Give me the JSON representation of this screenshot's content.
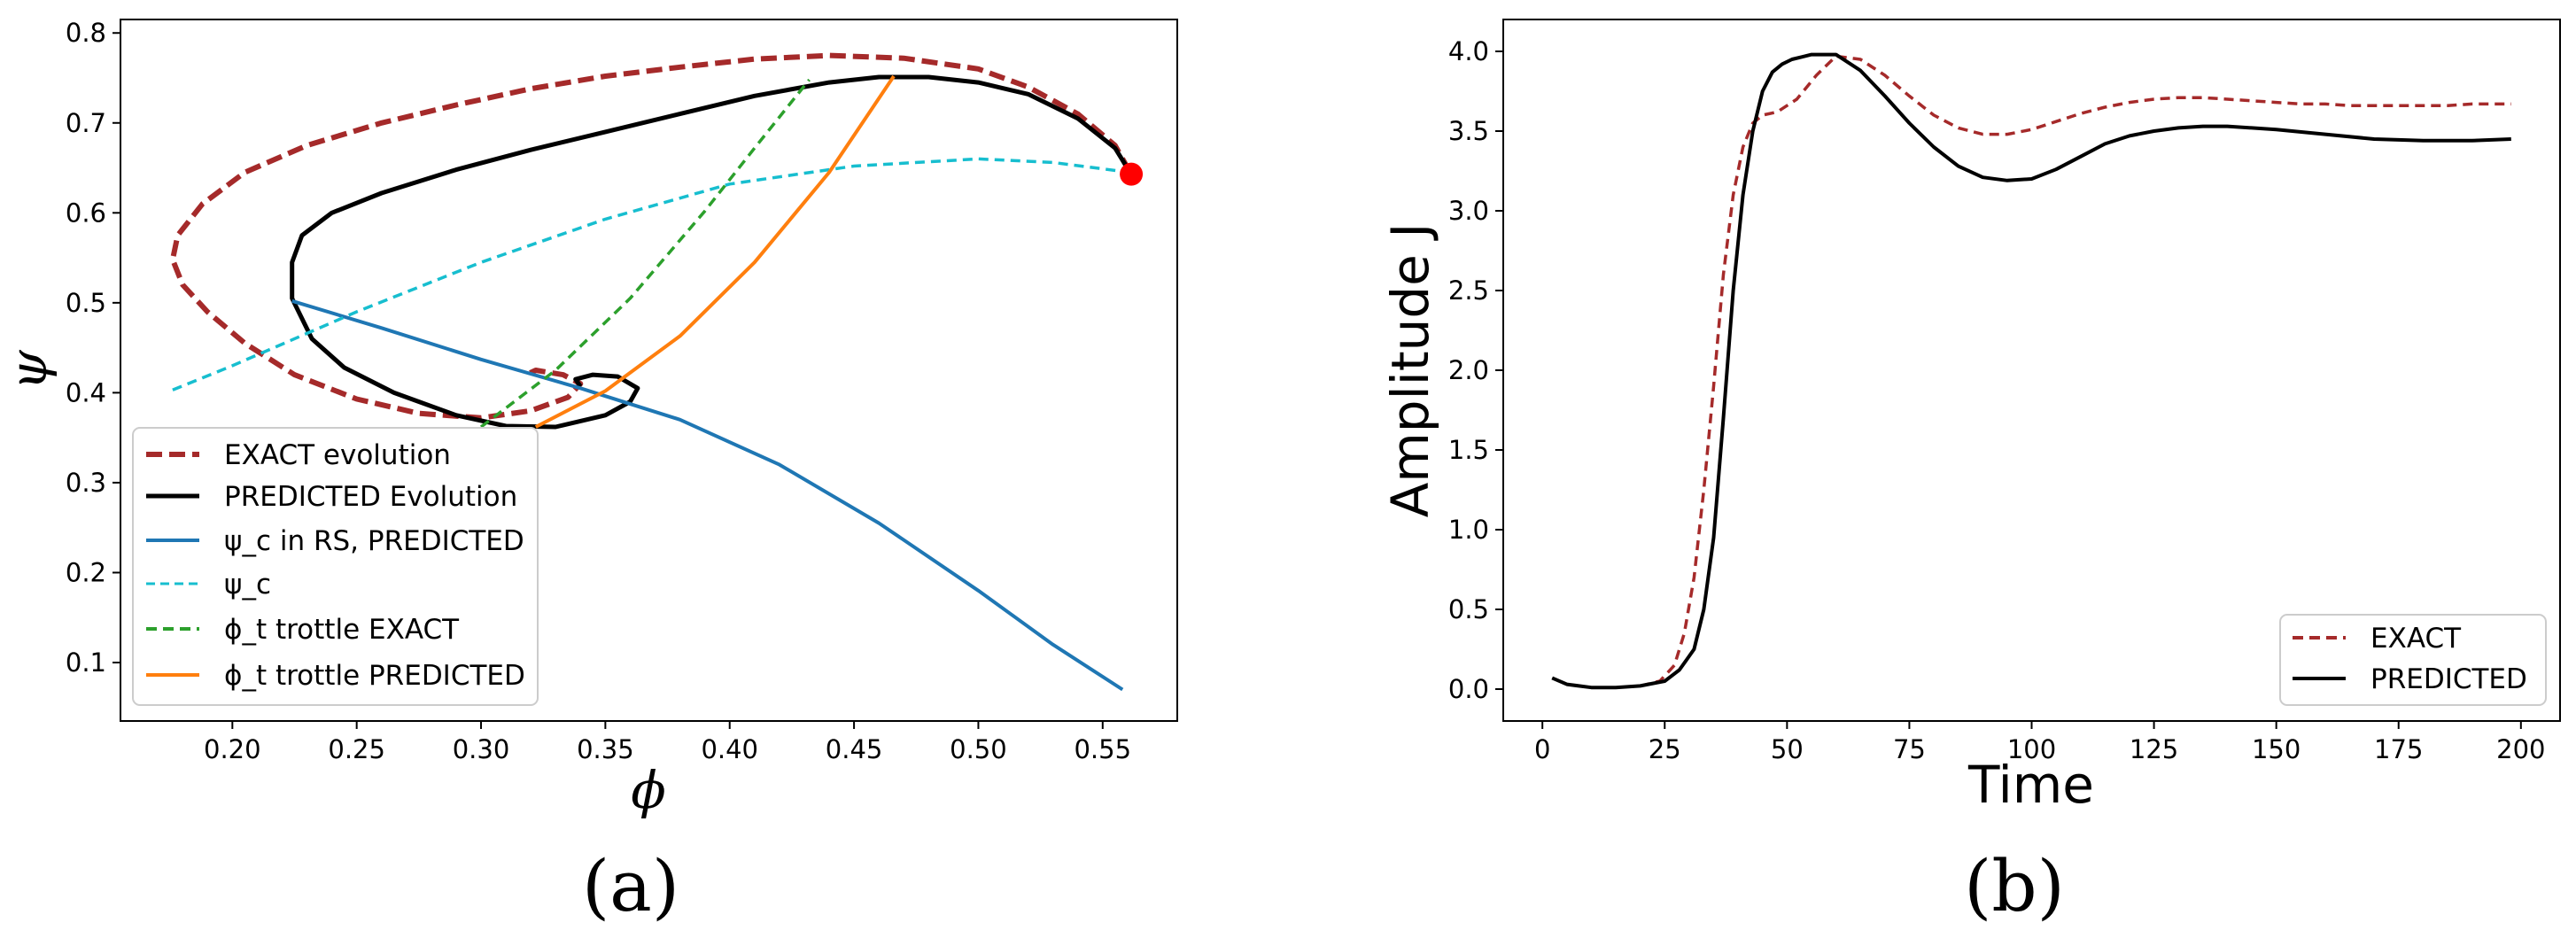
{
  "colors": {
    "exact_evolution": "#a52a2a",
    "predicted_evolution": "#000000",
    "psi_c_rs": "#1f77b4",
    "psi_c": "#17becf",
    "trottle_exact": "#2ca02c",
    "trottle_predicted": "#ff7f0e",
    "end_point": "#ff0000"
  },
  "chart_data": [
    {
      "type": "line",
      "panel_label": "(a)",
      "xlabel": "ϕ",
      "ylabel": "ψ",
      "xlim": [
        0.155,
        0.58
      ],
      "ylim": [
        0.035,
        0.815
      ],
      "xticks": [
        0.2,
        0.25,
        0.3,
        0.35,
        0.4,
        0.45,
        0.5,
        0.55
      ],
      "xtick_labels": [
        "0.20",
        "0.25",
        "0.30",
        "0.35",
        "0.40",
        "0.45",
        "0.50",
        "0.55"
      ],
      "yticks": [
        0.1,
        0.2,
        0.3,
        0.4,
        0.5,
        0.6,
        0.7,
        0.8
      ],
      "ytick_labels": [
        "0.1",
        "0.2",
        "0.3",
        "0.4",
        "0.5",
        "0.6",
        "0.7",
        "0.8"
      ],
      "legend_position": "lower-left",
      "series": [
        {
          "key": "exact_evolution",
          "name": "EXACT evolution",
          "style": "dashed-thick",
          "x": [
            0.561,
            0.555,
            0.54,
            0.52,
            0.5,
            0.47,
            0.44,
            0.41,
            0.38,
            0.35,
            0.32,
            0.29,
            0.26,
            0.23,
            0.205,
            0.188,
            0.178,
            0.176,
            0.18,
            0.19,
            0.205,
            0.225,
            0.25,
            0.275,
            0.3,
            0.32,
            0.335,
            0.34,
            0.333,
            0.322,
            0.318
          ],
          "y": [
            0.645,
            0.675,
            0.71,
            0.74,
            0.76,
            0.772,
            0.775,
            0.771,
            0.762,
            0.752,
            0.738,
            0.72,
            0.7,
            0.675,
            0.645,
            0.61,
            0.575,
            0.548,
            0.52,
            0.49,
            0.455,
            0.42,
            0.393,
            0.377,
            0.372,
            0.38,
            0.395,
            0.41,
            0.42,
            0.425,
            0.42
          ]
        },
        {
          "key": "predicted_evolution",
          "name": "PREDICTED Evolution",
          "style": "solid-thick",
          "x": [
            0.561,
            0.555,
            0.54,
            0.52,
            0.5,
            0.48,
            0.46,
            0.44,
            0.41,
            0.38,
            0.35,
            0.32,
            0.29,
            0.26,
            0.24,
            0.228,
            0.224,
            0.224,
            0.232,
            0.245,
            0.265,
            0.29,
            0.31,
            0.33,
            0.35,
            0.36,
            0.363,
            0.355,
            0.345,
            0.338,
            0.34
          ],
          "y": [
            0.645,
            0.672,
            0.705,
            0.732,
            0.745,
            0.751,
            0.751,
            0.745,
            0.73,
            0.71,
            0.69,
            0.67,
            0.648,
            0.622,
            0.6,
            0.575,
            0.545,
            0.505,
            0.46,
            0.428,
            0.4,
            0.375,
            0.363,
            0.362,
            0.375,
            0.39,
            0.405,
            0.418,
            0.42,
            0.415,
            0.407
          ]
        },
        {
          "key": "psi_c_rs",
          "name": "ψ_c in RS, PREDICTED",
          "style": "solid",
          "x": [
            0.224,
            0.26,
            0.3,
            0.34,
            0.38,
            0.42,
            0.46,
            0.5,
            0.53,
            0.558
          ],
          "y": [
            0.502,
            0.472,
            0.437,
            0.405,
            0.37,
            0.32,
            0.255,
            0.18,
            0.12,
            0.07
          ]
        },
        {
          "key": "psi_c",
          "name": "ψ_c",
          "style": "dashed",
          "x": [
            0.176,
            0.2,
            0.25,
            0.3,
            0.35,
            0.4,
            0.45,
            0.5,
            0.53,
            0.561
          ],
          "y": [
            0.403,
            0.43,
            0.49,
            0.545,
            0.593,
            0.632,
            0.652,
            0.66,
            0.656,
            0.645
          ]
        },
        {
          "key": "trottle_exact",
          "name": "ϕ_t trottle EXACT",
          "style": "dashed",
          "x": [
            0.3,
            0.33,
            0.36,
            0.39,
            0.41,
            0.432
          ],
          "y": [
            0.362,
            0.425,
            0.505,
            0.602,
            0.672,
            0.748
          ]
        },
        {
          "key": "trottle_predicted",
          "name": "ϕ_t trottle PREDICTED",
          "style": "solid",
          "x": [
            0.322,
            0.35,
            0.38,
            0.41,
            0.44,
            0.466
          ],
          "y": [
            0.362,
            0.402,
            0.463,
            0.545,
            0.645,
            0.752
          ]
        }
      ],
      "markers": [
        {
          "key": "end_point",
          "x": 0.5615,
          "y": 0.643
        }
      ]
    },
    {
      "type": "line",
      "panel_label": "(b)",
      "xlabel": "Time",
      "ylabel": "Amplitude J",
      "xlim": [
        -8,
        208
      ],
      "ylim": [
        -0.2,
        4.2
      ],
      "xticks": [
        0,
        25,
        50,
        75,
        100,
        125,
        150,
        175,
        200
      ],
      "xtick_labels": [
        "0",
        "25",
        "50",
        "75",
        "100",
        "125",
        "150",
        "175",
        "200"
      ],
      "yticks": [
        0.0,
        0.5,
        1.0,
        1.5,
        2.0,
        2.5,
        3.0,
        3.5,
        4.0
      ],
      "ytick_labels": [
        "0.0",
        "0.5",
        "1.0",
        "1.5",
        "2.0",
        "2.5",
        "3.0",
        "3.5",
        "4.0"
      ],
      "legend_position": "lower-right",
      "series": [
        {
          "key": "exact_evolution",
          "name": "EXACT",
          "style": "dashed",
          "x": [
            20,
            24,
            27,
            29,
            31,
            33,
            35,
            37,
            39,
            41,
            43,
            45,
            48,
            52,
            56,
            60,
            65,
            70,
            75,
            80,
            85,
            90,
            95,
            100,
            105,
            110,
            115,
            120,
            125,
            130,
            135,
            140,
            145,
            150,
            155,
            160,
            165,
            170,
            175,
            180,
            185,
            190,
            195,
            198
          ],
          "y": [
            0.02,
            0.05,
            0.15,
            0.35,
            0.7,
            1.25,
            1.9,
            2.6,
            3.1,
            3.4,
            3.55,
            3.6,
            3.62,
            3.7,
            3.85,
            3.97,
            3.95,
            3.85,
            3.72,
            3.6,
            3.52,
            3.48,
            3.48,
            3.51,
            3.56,
            3.61,
            3.65,
            3.68,
            3.7,
            3.71,
            3.71,
            3.7,
            3.69,
            3.68,
            3.67,
            3.67,
            3.66,
            3.66,
            3.66,
            3.66,
            3.66,
            3.67,
            3.67,
            3.67
          ]
        },
        {
          "key": "predicted_evolution",
          "name": "PREDICTED",
          "style": "solid",
          "x": [
            2,
            5,
            10,
            15,
            20,
            25,
            28,
            31,
            33,
            35,
            37,
            39,
            41,
            43,
            45,
            47,
            49,
            51,
            55,
            60,
            65,
            70,
            75,
            80,
            85,
            90,
            95,
            100,
            105,
            110,
            115,
            120,
            125,
            130,
            135,
            140,
            145,
            150,
            160,
            170,
            180,
            190,
            198
          ],
          "y": [
            0.07,
            0.03,
            0.01,
            0.01,
            0.02,
            0.05,
            0.12,
            0.25,
            0.5,
            0.95,
            1.7,
            2.5,
            3.1,
            3.5,
            3.75,
            3.87,
            3.92,
            3.95,
            3.98,
            3.98,
            3.88,
            3.72,
            3.55,
            3.4,
            3.28,
            3.21,
            3.19,
            3.2,
            3.26,
            3.34,
            3.42,
            3.47,
            3.5,
            3.52,
            3.53,
            3.53,
            3.52,
            3.51,
            3.48,
            3.45,
            3.44,
            3.44,
            3.45
          ]
        }
      ]
    }
  ]
}
